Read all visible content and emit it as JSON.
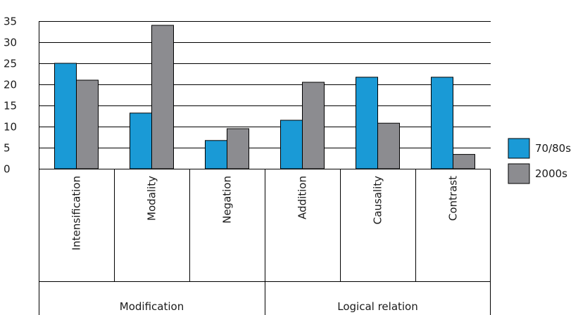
{
  "chart_data": {
    "type": "bar",
    "title": "",
    "xlabel": "",
    "ylabel": "",
    "ylim": [
      0,
      35
    ],
    "yticks": [
      0,
      5,
      10,
      15,
      20,
      25,
      30,
      35
    ],
    "grid": true,
    "legend_position": "right",
    "categories": [
      "Intensification",
      "Modality",
      "Negation",
      "Addition",
      "Causality",
      "Contrast"
    ],
    "groups": [
      {
        "label": "Modification",
        "categories": [
          "Intensification",
          "Modality",
          "Negation"
        ]
      },
      {
        "label": "Logical relation",
        "categories": [
          "Addition",
          "Causality",
          "Contrast"
        ]
      }
    ],
    "series": [
      {
        "name": "70/80s",
        "color": "#1a9ad6",
        "values": [
          25,
          13.2,
          6.7,
          11.5,
          21.7,
          21.7
        ]
      },
      {
        "name": "2000s",
        "color": "#8c8c90",
        "values": [
          21,
          34,
          9.5,
          20.5,
          10.8,
          3.4
        ]
      }
    ]
  }
}
